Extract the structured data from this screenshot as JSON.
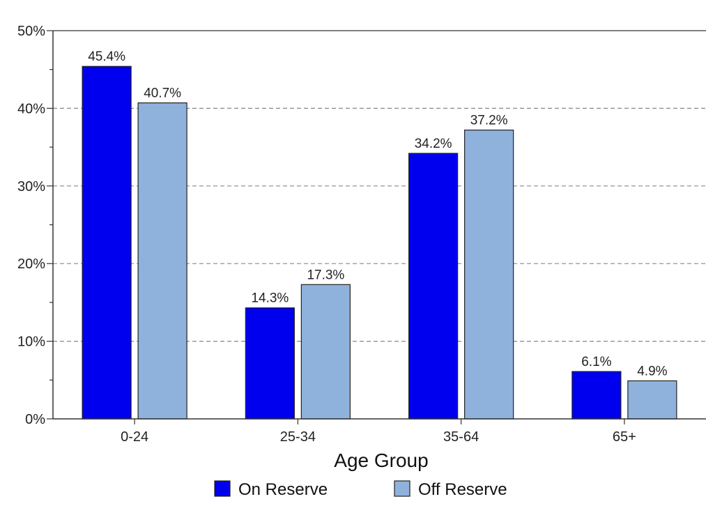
{
  "chart_data": {
    "type": "bar",
    "categories": [
      "0-24",
      "25-34",
      "35-64",
      "65+"
    ],
    "series": [
      {
        "name": "On Reserve",
        "values": [
          45.4,
          14.3,
          34.2,
          6.1
        ],
        "labels": [
          "45.4%",
          "14.3%",
          "34.2%",
          "6.1%"
        ],
        "color": "#0000ee"
      },
      {
        "name": "Off Reserve",
        "values": [
          40.7,
          17.3,
          37.2,
          4.9
        ],
        "labels": [
          "40.7%",
          "17.3%",
          "37.2%",
          "4.9%"
        ],
        "color": "#8fb2dd"
      }
    ],
    "yticks": [
      "0%",
      "10%",
      "20%",
      "30%",
      "40%",
      "50%"
    ],
    "ylim": [
      0,
      50
    ],
    "xlabel": "Age Group",
    "ylabel": "",
    "grid": true,
    "legend_position": "bottom"
  }
}
